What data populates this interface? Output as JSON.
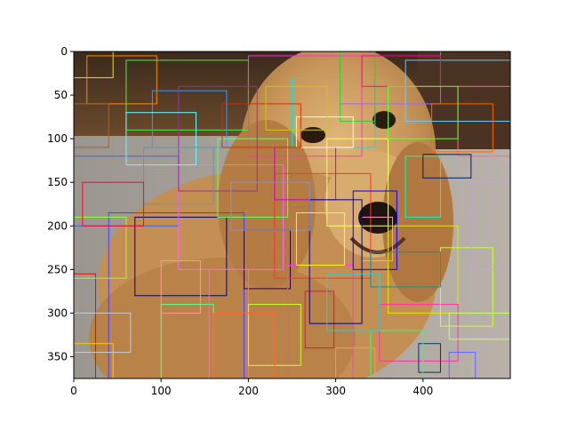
{
  "chart_data": {
    "type": "image-with-bounding-boxes",
    "title": "",
    "xlabel": "",
    "ylabel": "",
    "image_subject": "golden retriever dog",
    "image_size": {
      "width": 500,
      "height": 375
    },
    "xlim": [
      0,
      500
    ],
    "ylim": [
      375,
      0
    ],
    "x_ticks": [
      0,
      100,
      200,
      300,
      400
    ],
    "y_ticks": [
      0,
      50,
      100,
      150,
      200,
      250,
      300,
      350
    ],
    "grid": false,
    "legend": "none",
    "boxes": [
      {
        "x0": 0,
        "y0": 0,
        "x1": 45,
        "y1": 30,
        "color": "#e6e600"
      },
      {
        "x0": 15,
        "y0": 5,
        "x1": 95,
        "y1": 60,
        "color": "#ff8c00"
      },
      {
        "x0": 60,
        "y0": 10,
        "x1": 200,
        "y1": 90,
        "color": "#33ff33"
      },
      {
        "x0": 90,
        "y0": 45,
        "x1": 175,
        "y1": 110,
        "color": "#3399ff"
      },
      {
        "x0": 200,
        "y0": 5,
        "x1": 330,
        "y1": 120,
        "color": "#ff33cc"
      },
      {
        "x0": 250,
        "y0": 30,
        "x1": 345,
        "y1": 110,
        "color": "#00e6e6"
      },
      {
        "x0": 305,
        "y0": 0,
        "x1": 420,
        "y1": 60,
        "color": "#9966ff"
      },
      {
        "x0": 380,
        "y0": 10,
        "x1": 500,
        "y1": 80,
        "color": "#66ccff"
      },
      {
        "x0": 440,
        "y0": 40,
        "x1": 500,
        "y1": 120,
        "color": "#ff6699"
      },
      {
        "x0": 0,
        "y0": 120,
        "x1": 120,
        "y1": 200,
        "color": "#3366ff"
      },
      {
        "x0": 40,
        "y0": 185,
        "x1": 195,
        "y1": 380,
        "color": "#4040ff"
      },
      {
        "x0": 70,
        "y0": 190,
        "x1": 175,
        "y1": 280,
        "color": "#000066"
      },
      {
        "x0": 120,
        "y0": 130,
        "x1": 240,
        "y1": 250,
        "color": "#ff66ff"
      },
      {
        "x0": 165,
        "y0": 100,
        "x1": 245,
        "y1": 190,
        "color": "#66ff66"
      },
      {
        "x0": 195,
        "y0": 205,
        "x1": 248,
        "y1": 272,
        "color": "#330033"
      },
      {
        "x0": 230,
        "y0": 140,
        "x1": 340,
        "y1": 260,
        "color": "#ff3333"
      },
      {
        "x0": 230,
        "y0": 110,
        "x1": 300,
        "y1": 170,
        "color": "#cc00cc"
      },
      {
        "x0": 245,
        "y0": 245,
        "x1": 320,
        "y1": 380,
        "color": "#ff33ff"
      },
      {
        "x0": 265,
        "y0": 275,
        "x1": 298,
        "y1": 340,
        "color": "#ff0066"
      },
      {
        "x0": 290,
        "y0": 100,
        "x1": 360,
        "y1": 200,
        "color": "#ffff66"
      },
      {
        "x0": 305,
        "y0": 0,
        "x1": 345,
        "y1": 80,
        "color": "#33cc33"
      },
      {
        "x0": 320,
        "y0": 160,
        "x1": 370,
        "y1": 250,
        "color": "#0000ff"
      },
      {
        "x0": 330,
        "y0": 190,
        "x1": 365,
        "y1": 240,
        "color": "#ff99cc"
      },
      {
        "x0": 270,
        "y0": 170,
        "x1": 330,
        "y1": 312,
        "color": "#000099"
      },
      {
        "x0": 255,
        "y0": 75,
        "x1": 320,
        "y1": 110,
        "color": "#ffffff"
      },
      {
        "x0": 360,
        "y0": 200,
        "x1": 440,
        "y1": 300,
        "color": "#e6e600"
      },
      {
        "x0": 380,
        "y0": 120,
        "x1": 420,
        "y1": 190,
        "color": "#00ffaa"
      },
      {
        "x0": 400,
        "y0": 118,
        "x1": 455,
        "y1": 145,
        "color": "#001a66"
      },
      {
        "x0": 410,
        "y0": 60,
        "x1": 480,
        "y1": 115,
        "color": "#ff6600"
      },
      {
        "x0": 350,
        "y0": 290,
        "x1": 440,
        "y1": 355,
        "color": "#ff3399"
      },
      {
        "x0": 395,
        "y0": 335,
        "x1": 420,
        "y1": 368,
        "color": "#003366"
      },
      {
        "x0": 420,
        "y0": 225,
        "x1": 480,
        "y1": 315,
        "color": "#ccff33"
      },
      {
        "x0": 430,
        "y0": 300,
        "x1": 500,
        "y1": 330,
        "color": "#ccff66"
      },
      {
        "x0": 430,
        "y0": 345,
        "x1": 460,
        "y1": 375,
        "color": "#6666ff"
      },
      {
        "x0": 0,
        "y0": 255,
        "x1": 25,
        "y1": 380,
        "color": "#ff0000"
      },
      {
        "x0": 0,
        "y0": 335,
        "x1": 45,
        "y1": 380,
        "color": "#ffcc00"
      },
      {
        "x0": 0,
        "y0": 300,
        "x1": 65,
        "y1": 345,
        "color": "#cccccc"
      },
      {
        "x0": 100,
        "y0": 290,
        "x1": 160,
        "y1": 380,
        "color": "#66ff99"
      },
      {
        "x0": 155,
        "y0": 250,
        "x1": 200,
        "y1": 380,
        "color": "#ff66cc"
      },
      {
        "x0": 200,
        "y0": 290,
        "x1": 260,
        "y1": 360,
        "color": "#ccff33"
      },
      {
        "x0": 300,
        "y0": 340,
        "x1": 345,
        "y1": 380,
        "color": "#ff9933"
      },
      {
        "x0": 340,
        "y0": 320,
        "x1": 400,
        "y1": 380,
        "color": "#33ff66"
      },
      {
        "x0": 120,
        "y0": 40,
        "x1": 210,
        "y1": 160,
        "color": "#993399"
      },
      {
        "x0": 170,
        "y0": 60,
        "x1": 260,
        "y1": 110,
        "color": "#cc3300"
      },
      {
        "x0": 60,
        "y0": 70,
        "x1": 140,
        "y1": 130,
        "color": "#66ffff"
      },
      {
        "x0": 80,
        "y0": 110,
        "x1": 160,
        "y1": 175,
        "color": "#669999"
      },
      {
        "x0": 0,
        "y0": 190,
        "x1": 60,
        "y1": 260,
        "color": "#99ff33"
      },
      {
        "x0": 180,
        "y0": 150,
        "x1": 270,
        "y1": 205,
        "color": "#6699ff"
      },
      {
        "x0": 255,
        "y0": 185,
        "x1": 310,
        "y1": 245,
        "color": "#ffff00"
      },
      {
        "x0": 330,
        "y0": 5,
        "x1": 420,
        "y1": 40,
        "color": "#ff0099"
      },
      {
        "x0": 340,
        "y0": 230,
        "x1": 420,
        "y1": 270,
        "color": "#009999"
      },
      {
        "x0": 160,
        "y0": 300,
        "x1": 230,
        "y1": 380,
        "color": "#ff6633"
      },
      {
        "x0": 455,
        "y0": 150,
        "x1": 500,
        "y1": 250,
        "color": "#cc99ff"
      },
      {
        "x0": 0,
        "y0": 60,
        "x1": 40,
        "y1": 110,
        "color": "#996633"
      },
      {
        "x0": 100,
        "y0": 240,
        "x1": 145,
        "y1": 300,
        "color": "#ff9999"
      },
      {
        "x0": 290,
        "y0": 255,
        "x1": 350,
        "y1": 320,
        "color": "#33cccc"
      },
      {
        "x0": 220,
        "y0": 40,
        "x1": 290,
        "y1": 90,
        "color": "#cccc00"
      },
      {
        "x0": 10,
        "y0": 150,
        "x1": 80,
        "y1": 200,
        "color": "#ff0033"
      },
      {
        "x0": 360,
        "y0": 40,
        "x1": 440,
        "y1": 100,
        "color": "#66ff33"
      }
    ]
  }
}
